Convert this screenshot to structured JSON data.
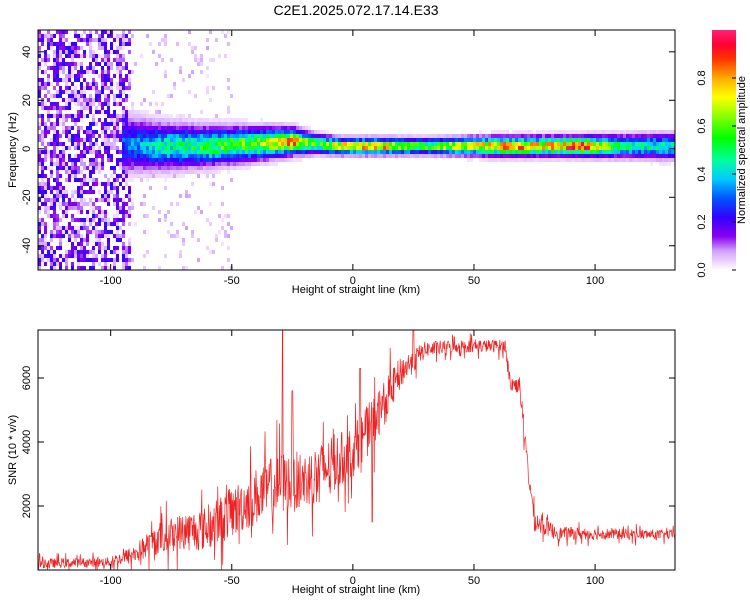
{
  "figure": {
    "title": "C2E1.2025.072.17.14.E33"
  },
  "chart_data": [
    {
      "type": "heatmap",
      "xlabel": "Height of straight line (km)",
      "ylabel": "Frequency (Hz)",
      "xlim": [
        -130,
        133
      ],
      "ylim": [
        -50,
        49
      ],
      "x_ticks": [
        -100,
        -50,
        0,
        50,
        100
      ],
      "y_ticks": [
        -40,
        -20,
        0,
        20,
        40
      ],
      "colorbar": {
        "label": "Normalized spectral amplitude",
        "range": [
          0.0,
          1.0
        ],
        "ticks": [
          0.0,
          0.2,
          0.4,
          0.6,
          0.8
        ],
        "colormap": "rainbow (magenta-purple-blue-cyan-green-yellow-orange-red)"
      },
      "features": [
        {
          "label": "broadband low-amplitude noise",
          "x_range": [
            -130,
            -92
          ],
          "freq_range": [
            -50,
            49
          ],
          "amplitude": 0.15
        },
        {
          "label": "sparse scatter",
          "x_range": [
            -92,
            -50
          ],
          "freq_range": [
            -50,
            49
          ],
          "amplitude": 0.05
        },
        {
          "label": "main echo band",
          "x_range": [
            -97,
            133
          ],
          "center_freq_hz": 1,
          "amplitude_peak": 0.95
        }
      ],
      "band_profile": [
        {
          "x": -95,
          "center": 2,
          "halfwidth": 9,
          "amp": 0.3
        },
        {
          "x": -80,
          "center": 1,
          "halfwidth": 7,
          "amp": 0.45
        },
        {
          "x": -60,
          "center": 1,
          "halfwidth": 6,
          "amp": 0.55
        },
        {
          "x": -40,
          "center": 2,
          "halfwidth": 5,
          "amp": 0.65
        },
        {
          "x": -25,
          "center": 3,
          "halfwidth": 4,
          "amp": 0.85
        },
        {
          "x": -15,
          "center": 2,
          "halfwidth": 3,
          "amp": 0.55
        },
        {
          "x": -5,
          "center": 1,
          "halfwidth": 2.5,
          "amp": 0.8
        },
        {
          "x": 10,
          "center": 1,
          "halfwidth": 2.5,
          "amp": 0.85
        },
        {
          "x": 30,
          "center": 1,
          "halfwidth": 2.5,
          "amp": 0.6
        },
        {
          "x": 60,
          "center": 1,
          "halfwidth": 3,
          "amp": 0.85
        },
        {
          "x": 80,
          "center": 1,
          "halfwidth": 3,
          "amp": 0.8
        },
        {
          "x": 95,
          "center": 1,
          "halfwidth": 3,
          "amp": 0.95
        },
        {
          "x": 110,
          "center": 1,
          "halfwidth": 3.5,
          "amp": 0.5
        },
        {
          "x": 133,
          "center": 1,
          "halfwidth": 4,
          "amp": 0.45
        }
      ]
    },
    {
      "type": "line",
      "xlabel": "Height of straight line (km)",
      "ylabel": "SNR (10 * v/v)",
      "xlim": [
        -130,
        133
      ],
      "ylim": [
        0,
        7500
      ],
      "x_ticks": [
        -100,
        -50,
        0,
        50,
        100
      ],
      "y_ticks": [
        2000,
        4000,
        6000
      ],
      "series": [
        {
          "color": "#ee2222",
          "envelope": [
            {
              "x": -130,
              "mean": 200,
              "noise": 150
            },
            {
              "x": -100,
              "mean": 250,
              "noise": 150
            },
            {
              "x": -90,
              "mean": 500,
              "noise": 300
            },
            {
              "x": -80,
              "mean": 1000,
              "noise": 500
            },
            {
              "x": -70,
              "mean": 1200,
              "noise": 600
            },
            {
              "x": -60,
              "mean": 1300,
              "noise": 700
            },
            {
              "x": -50,
              "mean": 1800,
              "noise": 800
            },
            {
              "x": -40,
              "mean": 2300,
              "noise": 900
            },
            {
              "x": -30,
              "mean": 2700,
              "noise": 1000
            },
            {
              "x": -20,
              "mean": 2800,
              "noise": 900
            },
            {
              "x": -10,
              "mean": 3200,
              "noise": 900
            },
            {
              "x": 0,
              "mean": 3700,
              "noise": 800
            },
            {
              "x": 10,
              "mean": 4800,
              "noise": 800
            },
            {
              "x": 20,
              "mean": 6200,
              "noise": 500
            },
            {
              "x": 30,
              "mean": 6900,
              "noise": 250
            },
            {
              "x": 45,
              "mean": 7000,
              "noise": 200
            },
            {
              "x": 63,
              "mean": 7000,
              "noise": 200
            },
            {
              "x": 65,
              "mean": 5800,
              "noise": 250
            },
            {
              "x": 69,
              "mean": 5800,
              "noise": 250
            },
            {
              "x": 71,
              "mean": 4000,
              "noise": 400
            },
            {
              "x": 75,
              "mean": 1500,
              "noise": 300
            },
            {
              "x": 85,
              "mean": 1150,
              "noise": 200
            },
            {
              "x": 133,
              "mean": 1100,
              "noise": 150
            }
          ],
          "spikes": [
            {
              "x": -29,
              "y": 7500
            },
            {
              "x": -25,
              "y": 5600
            },
            {
              "x": 3,
              "y": 6300
            },
            {
              "x": 8,
              "y": 1500
            },
            {
              "x": 25,
              "y": 7500
            }
          ]
        }
      ]
    }
  ]
}
